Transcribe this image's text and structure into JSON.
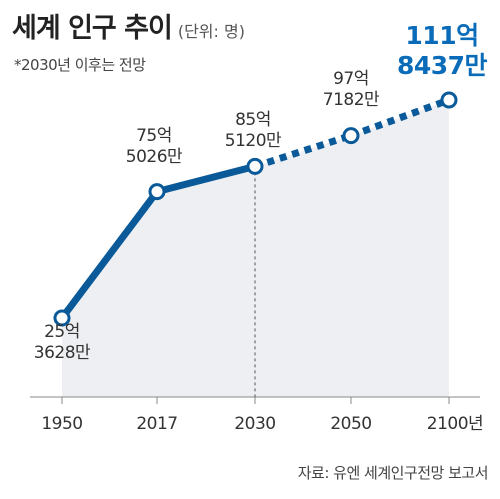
{
  "title": "세계 인구 추이",
  "unit": "(단위: 명)",
  "note": "*2030년 이후는 전망",
  "source": "자료: 유엔 세계인구전망 보고서",
  "colors": {
    "line": "#0a5a99",
    "area": "#eeeff2",
    "highlight": "#0a6cb8",
    "axis": "#888888"
  },
  "chart_data": {
    "type": "line",
    "x": [
      1950,
      2017,
      2030,
      2050,
      2100
    ],
    "tick_labels": [
      "1950",
      "2017",
      "2030",
      "2050",
      "2100년"
    ],
    "values": [
      2536280000,
      7550260000,
      8551200000,
      9771820000,
      11184370000
    ],
    "point_labels": [
      [
        "25억",
        "3628만"
      ],
      [
        "75억",
        "5026만"
      ],
      [
        "85억",
        "5120만"
      ],
      [
        "97억",
        "7182만"
      ],
      [
        "111억",
        "8437만"
      ]
    ],
    "projection_from_index": 2,
    "ylim": [
      0,
      12000000000
    ]
  }
}
